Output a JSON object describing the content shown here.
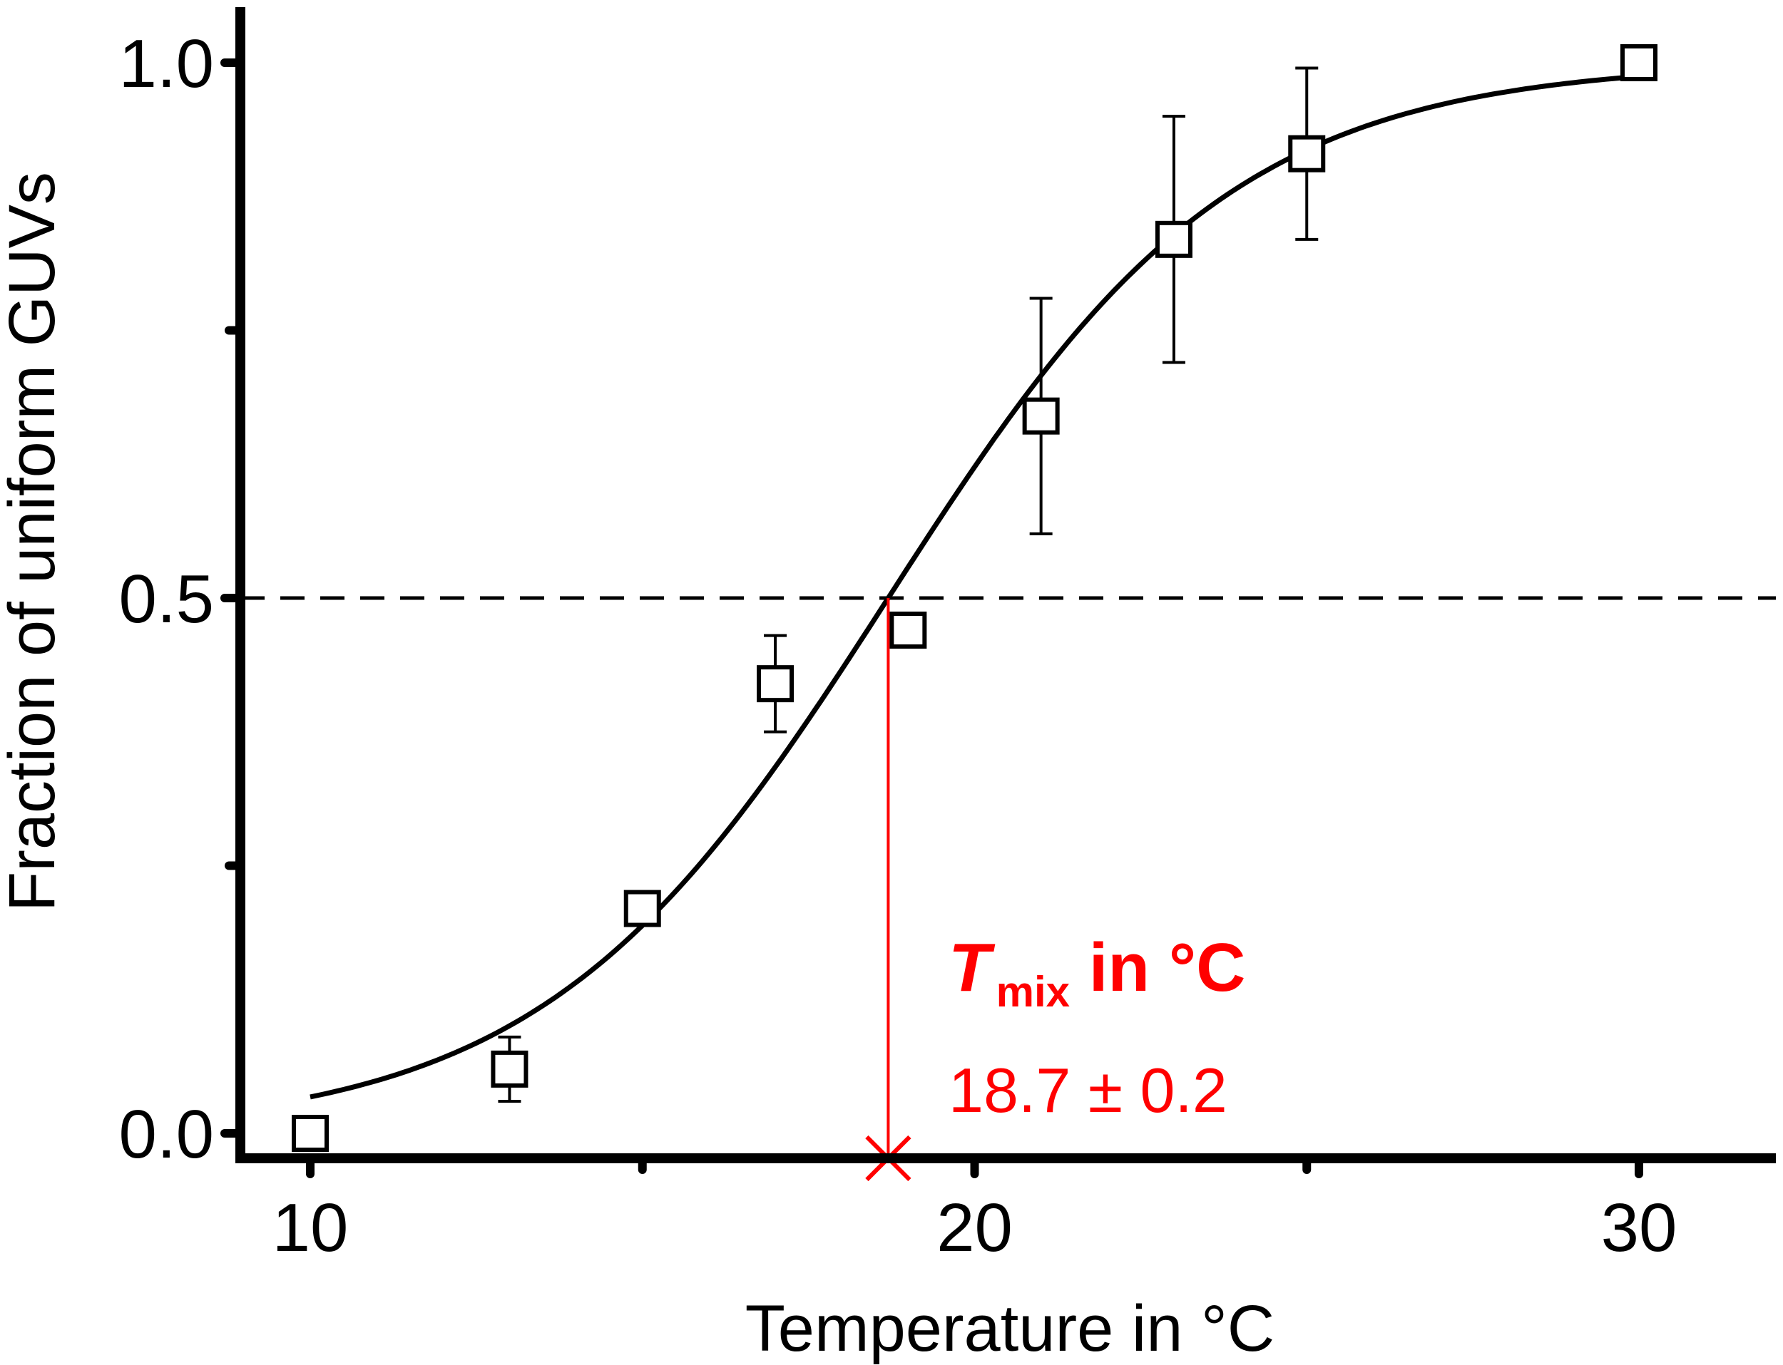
{
  "chart_data": {
    "type": "scatter",
    "title": "",
    "xlabel": "Temperature in °C",
    "ylabel": "Fraction of uniform GUVs",
    "xlim": [
      9,
      32
    ],
    "ylim": [
      -0.02,
      1.05
    ],
    "x_ticks": [
      10,
      20,
      30
    ],
    "x_minor_ticks": [
      15,
      25
    ],
    "y_ticks": [
      "1.0",
      "0.5",
      "0.0"
    ],
    "y_minor_ticks": [
      0.25,
      0.75
    ],
    "grid": false,
    "legend": "none",
    "points": [
      {
        "x": 10,
        "y": 0.0,
        "err": 0
      },
      {
        "x": 13,
        "y": 0.06,
        "err": 0.03
      },
      {
        "x": 15,
        "y": 0.21,
        "err": 0.01
      },
      {
        "x": 17,
        "y": 0.42,
        "err": 0.045
      },
      {
        "x": 19,
        "y": 0.47,
        "err": 0
      },
      {
        "x": 21,
        "y": 0.67,
        "err": 0.11
      },
      {
        "x": 23,
        "y": 0.835,
        "err": 0.115
      },
      {
        "x": 25,
        "y": 0.915,
        "err": 0.08
      },
      {
        "x": 30,
        "y": 1.0,
        "err": 0
      }
    ],
    "fit": {
      "model": "sigmoid",
      "x0": 18.7,
      "width": 2.6,
      "x_range": [
        10,
        30
      ]
    },
    "reference_line_y": 0.5,
    "annotation": {
      "symbol": "T",
      "subscript": "mix",
      "suffix": " in °C",
      "value": "18.7 ± 0.2",
      "marker_x": 18.7,
      "color": "#ff0000"
    }
  }
}
